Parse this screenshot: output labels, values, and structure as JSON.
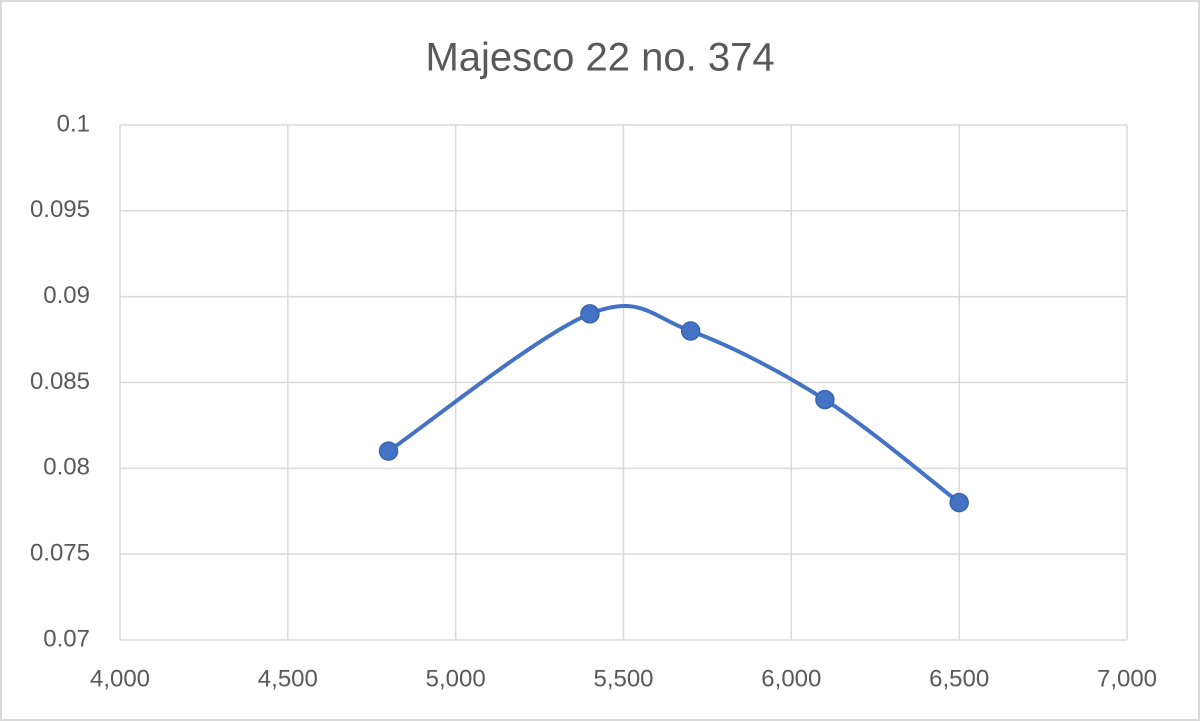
{
  "chart_data": {
    "type": "line",
    "smooth": true,
    "markers": true,
    "title": "Majesco 22 no. 374",
    "x": [
      4800,
      5400,
      5700,
      6100,
      6500
    ],
    "values": [
      0.081,
      0.089,
      0.088,
      0.084,
      0.078
    ],
    "color": "#4472c4",
    "xlim": [
      4000,
      7000
    ],
    "xticks": [
      {
        "value": 4000,
        "label": "4,000"
      },
      {
        "value": 4500,
        "label": "4,500"
      },
      {
        "value": 5000,
        "label": "5,000"
      },
      {
        "value": 5500,
        "label": "5,500"
      },
      {
        "value": 6000,
        "label": "6,000"
      },
      {
        "value": 6500,
        "label": "6,500"
      },
      {
        "value": 7000,
        "label": "7,000"
      }
    ],
    "ylim": [
      0.07,
      0.1
    ],
    "yticks": [
      0.07,
      0.075,
      0.08,
      0.085,
      0.09,
      0.095,
      0.1
    ],
    "grid": true
  }
}
